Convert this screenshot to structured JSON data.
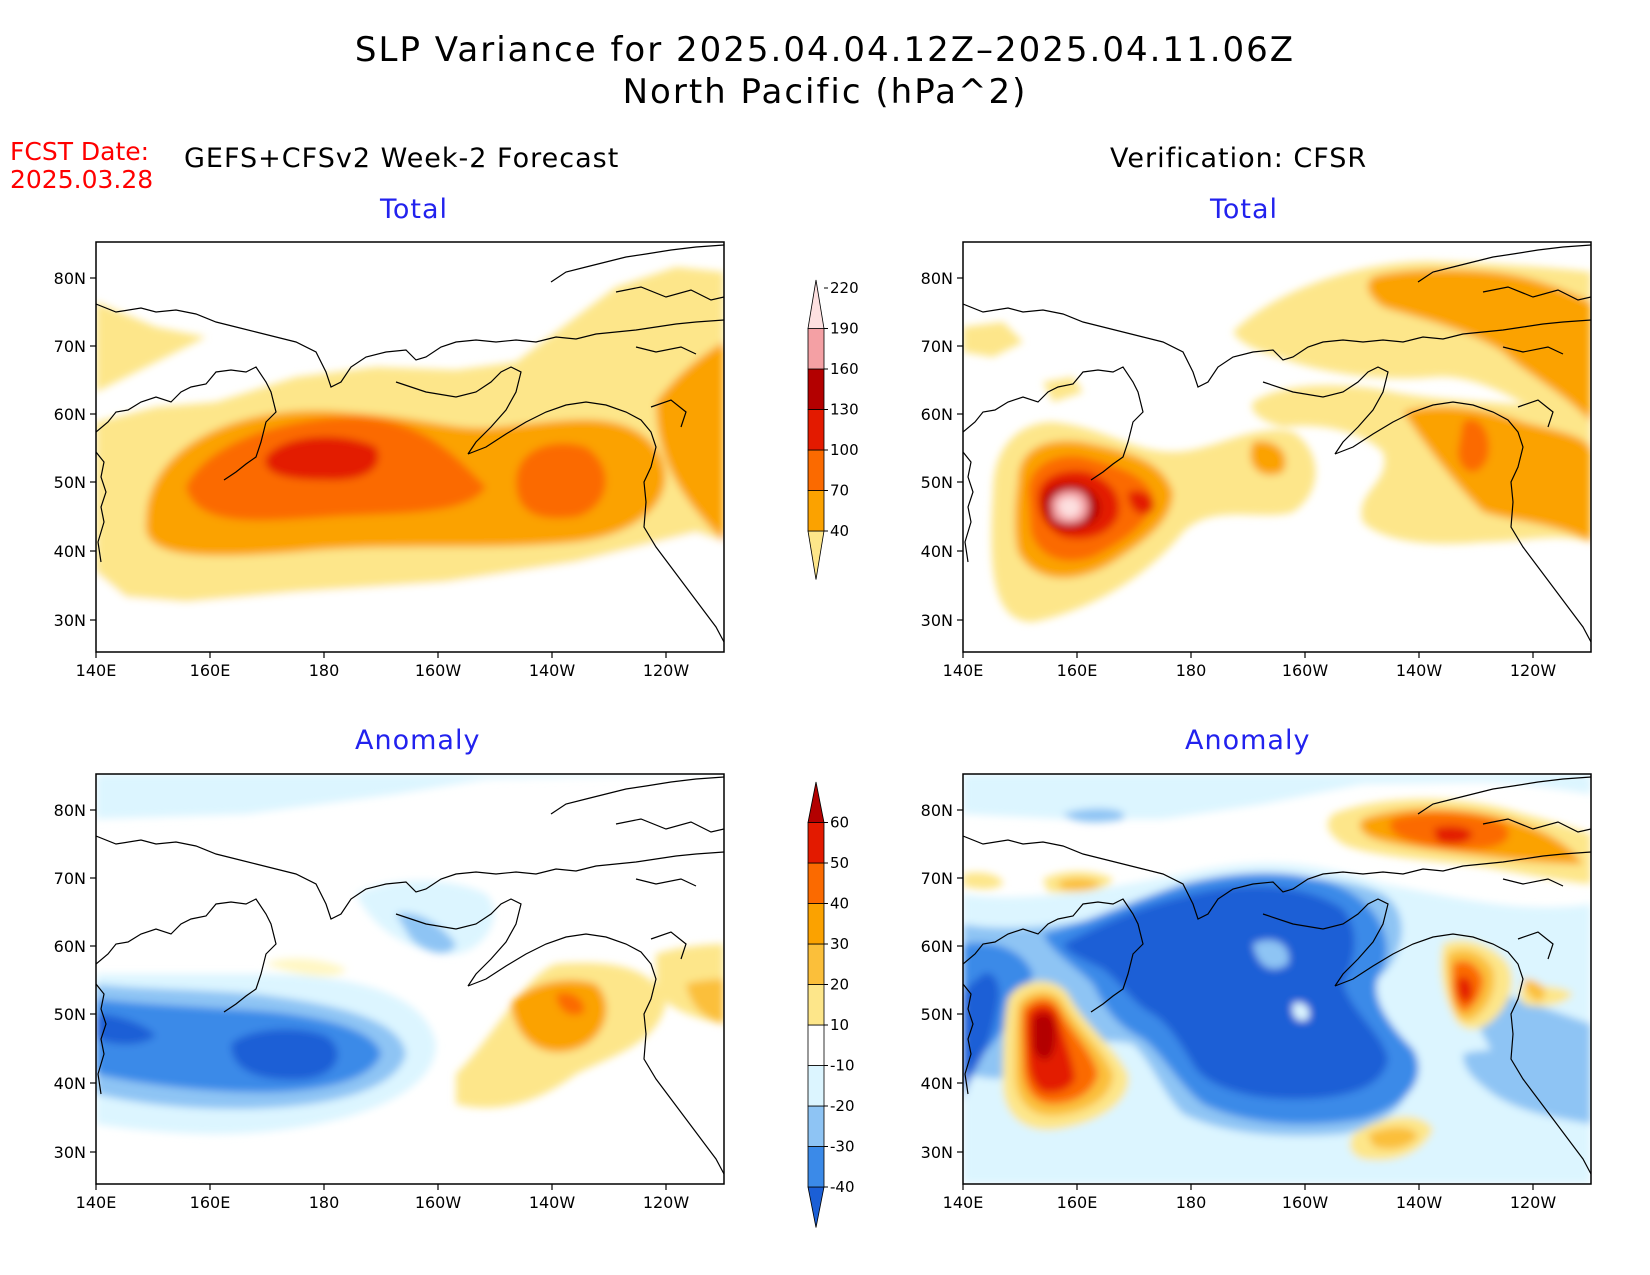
{
  "title_line1": "SLP Variance for 2025.04.04.12Z–2025.04.11.06Z",
  "title_line2": "North Pacific (hPa^2)",
  "fcst_date_label": "FCST Date:",
  "fcst_date_value": "2025.03.28",
  "left_header": "GEFS+CFSv2 Week-2 Forecast",
  "right_header": "Verification: CFSR",
  "panels": {
    "top_left": "Total",
    "top_right": "Total",
    "bottom_left": "Anomaly",
    "bottom_right": "Anomaly"
  },
  "axes": {
    "lat_labels": [
      "80N",
      "70N",
      "60N",
      "50N",
      "40N",
      "30N"
    ],
    "lon_labels": [
      "140E",
      "160E",
      "180",
      "160W",
      "140W",
      "120W"
    ]
  },
  "colorbar_total": {
    "levels": [
      "40",
      "70",
      "100",
      "130",
      "160",
      "190",
      "220"
    ],
    "colors": [
      "#fde68a",
      "#fba200",
      "#fb6a00",
      "#e31a00",
      "#b30000",
      "#f4a0a4",
      "#fde0e0"
    ]
  },
  "colorbar_anomaly": {
    "levels": [
      "-40",
      "-30",
      "-20",
      "-10",
      "10",
      "20",
      "30",
      "40",
      "50",
      "60"
    ],
    "colors": [
      "#1b5fd6",
      "#3b8ae8",
      "#8ec4f4",
      "#dcf5ff",
      "#ffffff",
      "#fde68a",
      "#fbbf3a",
      "#fba200",
      "#fb6a00",
      "#e31a00",
      "#b30000"
    ]
  }
}
